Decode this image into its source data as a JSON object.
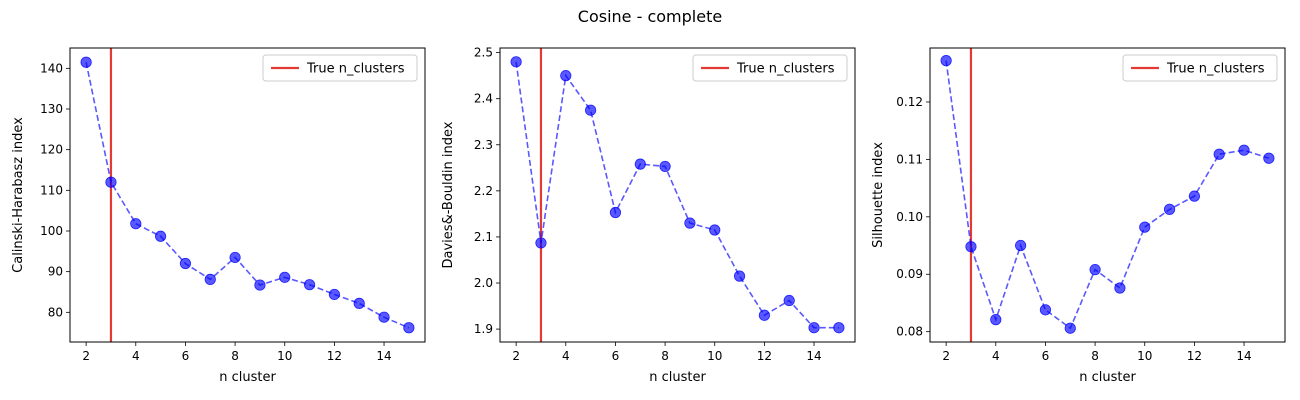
{
  "figure": {
    "title": "Cosine - complete"
  },
  "colors": {
    "series": "#0000ff",
    "reference_line": "#e53935"
  },
  "chart_data": [
    {
      "type": "line",
      "xlabel": "n cluster",
      "ylabel": "Calinski-Harabasz index",
      "xlim": [
        1.35,
        15.65
      ],
      "ylim": [
        72.7,
        145.0
      ],
      "xticks": [
        2,
        4,
        6,
        8,
        10,
        12,
        14
      ],
      "yticks": [
        80,
        90,
        100,
        110,
        120,
        130,
        140
      ],
      "ytick_labels": [
        "80",
        "90",
        "100",
        "110",
        "120",
        "130",
        "140"
      ],
      "grid": false,
      "legend": {
        "position": "top-right",
        "entries": [
          "True n_clusters"
        ]
      },
      "vline": {
        "x": 3,
        "label": "True n_clusters"
      },
      "x": [
        2,
        3,
        4,
        5,
        6,
        7,
        8,
        9,
        10,
        11,
        12,
        13,
        14,
        15
      ],
      "values": [
        141.5,
        112.0,
        101.8,
        98.7,
        92.0,
        88.1,
        93.5,
        86.7,
        88.6,
        86.8,
        84.4,
        82.2,
        78.8,
        76.2
      ]
    },
    {
      "type": "line",
      "xlabel": "n cluster",
      "ylabel": "Davies&-Bouldin index",
      "xlim": [
        1.35,
        15.65
      ],
      "ylim": [
        1.872,
        2.51
      ],
      "xticks": [
        2,
        4,
        6,
        8,
        10,
        12,
        14
      ],
      "yticks": [
        1.9,
        2.0,
        2.1,
        2.2,
        2.3,
        2.4,
        2.5
      ],
      "ytick_labels": [
        "1.9",
        "2.0",
        "2.1",
        "2.2",
        "2.3",
        "2.4",
        "2.5"
      ],
      "grid": false,
      "legend": {
        "position": "top-right",
        "entries": [
          "True n_clusters"
        ]
      },
      "vline": {
        "x": 3,
        "label": "True n_clusters"
      },
      "x": [
        2,
        3,
        4,
        5,
        6,
        7,
        8,
        9,
        10,
        11,
        12,
        13,
        14,
        15
      ],
      "values": [
        2.48,
        2.087,
        2.45,
        2.375,
        2.153,
        2.258,
        2.253,
        2.13,
        2.115,
        2.015,
        1.93,
        1.962,
        1.903,
        1.903
      ]
    },
    {
      "type": "line",
      "xlabel": "n cluster",
      "ylabel": "Silhouette index",
      "xlim": [
        1.35,
        15.65
      ],
      "ylim": [
        0.0782,
        0.1294
      ],
      "xticks": [
        2,
        4,
        6,
        8,
        10,
        12,
        14
      ],
      "yticks": [
        0.08,
        0.09,
        0.1,
        0.11,
        0.12
      ],
      "ytick_labels": [
        "0.08",
        "0.09",
        "0.10",
        "0.11",
        "0.12"
      ],
      "grid": false,
      "legend": {
        "position": "top-right",
        "entries": [
          "True n_clusters"
        ]
      },
      "vline": {
        "x": 3,
        "label": "True n_clusters"
      },
      "x": [
        2,
        3,
        4,
        5,
        6,
        7,
        8,
        9,
        10,
        11,
        12,
        13,
        14,
        15
      ],
      "values": [
        0.1272,
        0.0948,
        0.0821,
        0.095,
        0.0838,
        0.0806,
        0.0908,
        0.0876,
        0.0982,
        0.1013,
        0.1036,
        0.1109,
        0.1116,
        0.1102
      ]
    }
  ]
}
